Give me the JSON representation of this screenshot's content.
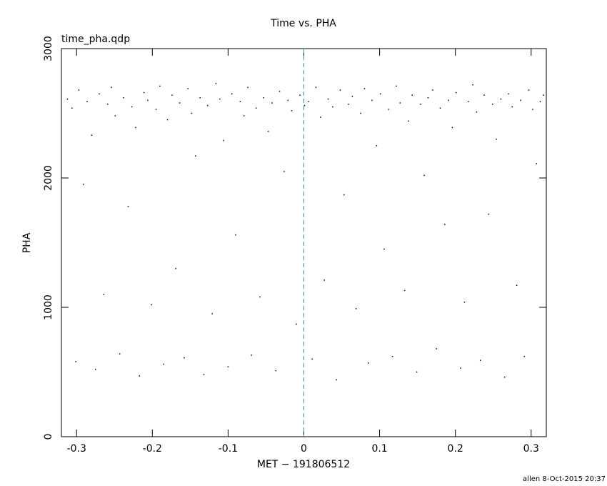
{
  "chart_data": {
    "type": "scatter",
    "title": "Time vs. PHA",
    "subtitle": "time_pha.qdp",
    "x_label": "MET − 191806512",
    "y_label": "PHA",
    "footer": "allen  8-Oct-2015 20:37",
    "xlim": [
      -0.32,
      0.32
    ],
    "ylim": [
      0,
      3000
    ],
    "xticks": [
      -0.3,
      -0.2,
      -0.1,
      0,
      0.1,
      0.2,
      0.3
    ],
    "yticks": [
      0,
      1000,
      2000,
      3000
    ],
    "color": "#000000",
    "reference_line": {
      "x": 0,
      "color": "#1a9aa8",
      "dashed": true
    },
    "x": [
      -0.312,
      -0.306,
      -0.301,
      -0.297,
      -0.291,
      -0.286,
      -0.28,
      -0.275,
      -0.27,
      -0.264,
      -0.259,
      -0.254,
      -0.249,
      -0.243,
      -0.238,
      -0.232,
      -0.227,
      -0.222,
      -0.217,
      -0.211,
      -0.206,
      -0.201,
      -0.195,
      -0.19,
      -0.185,
      -0.18,
      -0.174,
      -0.169,
      -0.164,
      -0.158,
      -0.153,
      -0.148,
      -0.143,
      -0.137,
      -0.132,
      -0.127,
      -0.121,
      -0.116,
      -0.111,
      -0.106,
      -0.1,
      -0.095,
      -0.09,
      -0.084,
      -0.079,
      -0.074,
      -0.069,
      -0.063,
      -0.058,
      -0.053,
      -0.047,
      -0.042,
      -0.037,
      -0.032,
      -0.026,
      -0.021,
      -0.016,
      -0.01,
      -0.005,
      0.001,
      0.006,
      0.011,
      0.016,
      0.022,
      0.027,
      0.032,
      0.038,
      0.043,
      0.048,
      0.053,
      0.059,
      0.064,
      0.069,
      0.075,
      0.08,
      0.085,
      0.09,
      0.096,
      0.101,
      0.106,
      0.112,
      0.117,
      0.122,
      0.127,
      0.133,
      0.138,
      0.143,
      0.149,
      0.154,
      0.159,
      0.164,
      0.17,
      0.175,
      0.18,
      0.186,
      0.191,
      0.196,
      0.201,
      0.207,
      0.212,
      0.217,
      0.223,
      0.228,
      0.233,
      0.238,
      0.244,
      0.249,
      0.254,
      0.26,
      0.265,
      0.27,
      0.275,
      0.281,
      0.286,
      0.291,
      0.297,
      0.302,
      0.307,
      0.312,
      0.316
    ],
    "values": [
      2610,
      2540,
      580,
      2680,
      1950,
      2590,
      2330,
      520,
      2650,
      1100,
      2570,
      2700,
      2480,
      640,
      2620,
      1780,
      2550,
      2390,
      470,
      2660,
      2600,
      1020,
      2530,
      2710,
      560,
      2450,
      2640,
      1300,
      2580,
      610,
      2690,
      2500,
      2170,
      2620,
      480,
      2560,
      950,
      2730,
      2610,
      2290,
      540,
      2650,
      1560,
      2590,
      2480,
      2700,
      630,
      2540,
      1080,
      2620,
      2360,
      2580,
      510,
      2670,
      2050,
      2600,
      2520,
      870,
      2640,
      2560,
      2590,
      600,
      2700,
      2470,
      1210,
      2610,
      2550,
      440,
      2680,
      1870,
      2570,
      2630,
      990,
      2500,
      2690,
      570,
      2600,
      2250,
      2650,
      1450,
      2530,
      620,
      2710,
      2580,
      1130,
      2440,
      2640,
      500,
      2570,
      2020,
      2620,
      2680,
      680,
      2540,
      1640,
      2600,
      2390,
      2660,
      530,
      1040,
      2590,
      2720,
      2510,
      590,
      2640,
      1720,
      2570,
      2300,
      2610,
      460,
      2650,
      2550,
      1170,
      2600,
      620,
      2680,
      2530,
      2110,
      2590,
      2640
    ]
  }
}
